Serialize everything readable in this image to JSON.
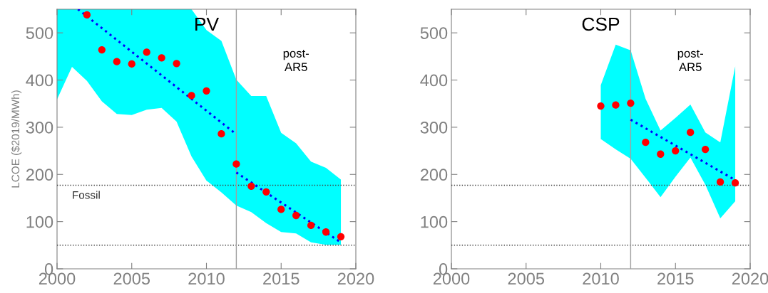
{
  "chart_data": [
    {
      "type": "scatter",
      "title": "PV",
      "ylabel": "LCOE ($2019/MWh)",
      "xlim": [
        2000,
        2020
      ],
      "xticks": [
        2000,
        2005,
        2010,
        2015,
        2020
      ],
      "ylim": [
        0,
        550
      ],
      "yticks": [
        0,
        100,
        200,
        300,
        400,
        500
      ],
      "grid": false,
      "legend": false,
      "series": [
        {
          "color": "#ff0000",
          "marker": "circle",
          "x": [
            2000,
            2001,
            2002,
            2003,
            2004,
            2005,
            2006,
            2007,
            2008,
            2009,
            2010,
            2011,
            2012,
            2013,
            2014,
            2015,
            2016,
            2017,
            2018,
            2019
          ],
          "values": [
            null,
            null,
            538,
            464,
            439,
            434,
            459,
            447,
            435,
            367,
            377,
            286,
            222,
            175,
            163,
            126,
            113,
            92,
            78,
            68
          ],
          "upper": [
            550,
            550,
            550,
            550,
            550,
            550,
            550,
            550,
            550,
            550,
            506,
            483,
            401,
            366,
            366,
            288,
            266,
            227,
            214,
            189
          ],
          "lower": [
            359,
            428,
            398,
            355,
            328,
            326,
            337,
            341,
            312,
            238,
            187,
            162,
            134,
            120,
            97,
            78,
            75,
            56,
            51,
            51
          ]
        },
        {
          "type": "line",
          "line_style": "dotted",
          "marker": "none",
          "color": "#0000ff",
          "x": [
            2001.4,
            2012
          ],
          "values": [
            550,
            285
          ]
        },
        {
          "type": "line",
          "line_style": "dotted",
          "marker": "none",
          "color": "#0000ff",
          "x": [
            2012,
            2019
          ],
          "values": [
            204,
            56
          ]
        }
      ],
      "ref_lines": [
        {
          "axis": "y",
          "value": 177,
          "label": "Fossil",
          "color": "#404040",
          "line_style": "dotted"
        },
        {
          "axis": "y",
          "value": 50,
          "color": "#404040",
          "line_style": "dotted"
        },
        {
          "axis": "x",
          "value": 2012,
          "color": "#a0a0a0",
          "line_style": "solid"
        }
      ],
      "annotations": [
        "post-\nAR5"
      ]
    },
    {
      "type": "scatter",
      "title": "CSP",
      "xlim": [
        2000,
        2020
      ],
      "xticks": [
        2000,
        2005,
        2010,
        2015,
        2020
      ],
      "ylim": [
        0,
        550
      ],
      "yticks": [
        0,
        100,
        200,
        300,
        400,
        500
      ],
      "grid": false,
      "legend": false,
      "series": [
        {
          "color": "#ff0000",
          "marker": "circle",
          "x": [
            2010,
            2011,
            2012,
            2013,
            2014,
            2015,
            2016,
            2017,
            2018,
            2019
          ],
          "values": [
            345,
            347,
            351,
            268,
            243,
            250,
            289,
            253,
            184,
            182
          ],
          "upper": [
            389,
            475,
            463,
            360,
            293,
            320,
            348,
            289,
            268,
            429
          ],
          "lower": [
            275,
            253,
            233,
            193,
            152,
            195,
            236,
            178,
            107,
            143
          ]
        },
        {
          "type": "line",
          "line_style": "dotted",
          "marker": "none",
          "color": "#0000ff",
          "x": [
            2012,
            2019
          ],
          "values": [
            316,
            188
          ]
        }
      ],
      "ref_lines": [
        {
          "axis": "y",
          "value": 177,
          "color": "#404040",
          "line_style": "dotted"
        },
        {
          "axis": "y",
          "value": 50,
          "color": "#404040",
          "line_style": "dotted"
        },
        {
          "axis": "x",
          "value": 2012,
          "color": "#a0a0a0",
          "line_style": "solid"
        }
      ],
      "annotations": [
        "post-\nAR5"
      ]
    }
  ]
}
